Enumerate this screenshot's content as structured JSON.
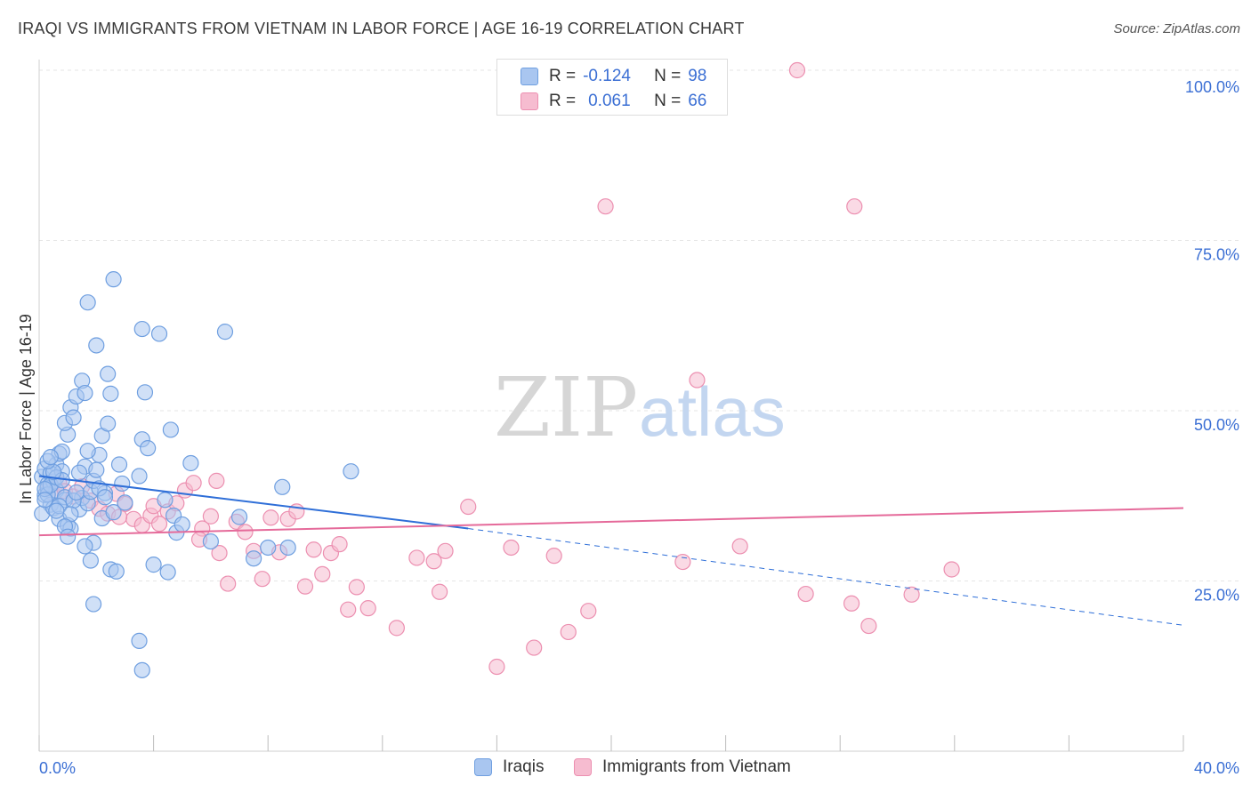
{
  "title": "IRAQI VS IMMIGRANTS FROM VIETNAM IN LABOR FORCE | AGE 16-19 CORRELATION CHART",
  "source": "Source: ZipAtlas.com",
  "watermark": {
    "zip": "ZIP",
    "atlas": "atlas"
  },
  "colors": {
    "iraqis_fill": "#a9c6f0",
    "iraqis_stroke": "#6f9fe0",
    "iraqis_line": "#2f6fd8",
    "vietnam_fill": "#f6bcd0",
    "vietnam_stroke": "#ec8fb0",
    "vietnam_line": "#e56a9a",
    "axis_text": "#3b6fd4",
    "grid": "#e6e6e6"
  },
  "stats": [
    {
      "r_label": "R =",
      "r_value": "-0.124",
      "n_label": "N =",
      "n_value": "98"
    },
    {
      "r_label": "R =",
      "r_value": "0.061",
      "n_label": "N =",
      "n_value": "66"
    }
  ],
  "chart_data": {
    "type": "scatter",
    "ylabel": "In Labor Force | Age 16-19",
    "xlim": [
      0,
      40
    ],
    "ylim": [
      0,
      100
    ],
    "x_tick_labels": [
      "0.0%",
      "40.0%"
    ],
    "y_tick_labels": [
      "25.0%",
      "50.0%",
      "75.0%",
      "100.0%"
    ],
    "y_ticks": [
      25,
      50,
      75,
      100
    ],
    "grid": true,
    "legend_position": "bottom",
    "series": [
      {
        "name": "Iraqis",
        "r": -0.124,
        "n": 98,
        "trend": {
          "x0": 0,
          "y0": 40.4,
          "x1": 15,
          "y1": 32.7,
          "dashed_to_x": 40,
          "dashed_to_y": 18.5
        },
        "points": [
          [
            0.1,
            40.3
          ],
          [
            0.2,
            41.5
          ],
          [
            0.3,
            39.2
          ],
          [
            0.2,
            37.6
          ],
          [
            0.4,
            36.2
          ],
          [
            0.1,
            34.9
          ],
          [
            0.3,
            38.7
          ],
          [
            0.5,
            39.6
          ],
          [
            0.6,
            42.1
          ],
          [
            0.4,
            40.8
          ],
          [
            0.7,
            43.7
          ],
          [
            0.8,
            41.1
          ],
          [
            0.6,
            38.3
          ],
          [
            0.9,
            36.9
          ],
          [
            0.5,
            35.7
          ],
          [
            0.7,
            34.1
          ],
          [
            1.0,
            46.5
          ],
          [
            0.9,
            48.2
          ],
          [
            1.1,
            50.5
          ],
          [
            1.2,
            49.0
          ],
          [
            1.3,
            52.1
          ],
          [
            0.8,
            44.0
          ],
          [
            1.0,
            33.2
          ],
          [
            1.1,
            32.7
          ],
          [
            1.4,
            35.5
          ],
          [
            1.5,
            37.2
          ],
          [
            1.6,
            41.8
          ],
          [
            1.7,
            36.4
          ],
          [
            1.8,
            38.1
          ],
          [
            1.9,
            39.7
          ],
          [
            2.0,
            41.3
          ],
          [
            2.1,
            43.5
          ],
          [
            2.2,
            46.3
          ],
          [
            1.5,
            54.4
          ],
          [
            1.6,
            52.6
          ],
          [
            2.0,
            59.6
          ],
          [
            2.4,
            55.4
          ],
          [
            2.5,
            52.5
          ],
          [
            1.7,
            65.9
          ],
          [
            2.6,
            69.3
          ],
          [
            2.8,
            42.1
          ],
          [
            2.9,
            39.3
          ],
          [
            3.0,
            36.5
          ],
          [
            2.3,
            37.9
          ],
          [
            2.2,
            34.2
          ],
          [
            2.5,
            26.7
          ],
          [
            2.7,
            26.4
          ],
          [
            1.9,
            30.6
          ],
          [
            1.8,
            28.0
          ],
          [
            1.6,
            30.1
          ],
          [
            1.9,
            21.6
          ],
          [
            3.5,
            40.4
          ],
          [
            3.6,
            45.8
          ],
          [
            3.7,
            52.7
          ],
          [
            3.8,
            44.5
          ],
          [
            3.6,
            62.0
          ],
          [
            4.2,
            61.3
          ],
          [
            4.6,
            47.2
          ],
          [
            5.3,
            42.3
          ],
          [
            4.0,
            27.4
          ],
          [
            4.5,
            26.3
          ],
          [
            4.4,
            36.9
          ],
          [
            4.7,
            34.6
          ],
          [
            4.8,
            32.1
          ],
          [
            5.0,
            33.3
          ],
          [
            6.0,
            30.8
          ],
          [
            6.5,
            61.6
          ],
          [
            7.0,
            34.4
          ],
          [
            7.5,
            28.3
          ],
          [
            8.0,
            29.9
          ],
          [
            8.7,
            29.9
          ],
          [
            8.5,
            38.8
          ],
          [
            10.9,
            41.1
          ],
          [
            3.5,
            16.2
          ],
          [
            3.6,
            11.9
          ],
          [
            0.3,
            37.7
          ],
          [
            0.4,
            39.1
          ],
          [
            0.2,
            38.5
          ],
          [
            0.9,
            37.3
          ],
          [
            1.2,
            36.8
          ],
          [
            1.3,
            38.0
          ],
          [
            0.6,
            40.2
          ],
          [
            0.8,
            39.8
          ],
          [
            1.4,
            40.9
          ],
          [
            2.1,
            38.6
          ],
          [
            2.3,
            37.3
          ],
          [
            2.6,
            35.1
          ],
          [
            0.5,
            41.0
          ],
          [
            0.7,
            36.0
          ],
          [
            1.1,
            34.8
          ],
          [
            0.3,
            42.6
          ],
          [
            0.4,
            43.2
          ],
          [
            1.7,
            44.1
          ],
          [
            2.4,
            48.1
          ],
          [
            0.9,
            33.0
          ],
          [
            1.0,
            31.5
          ],
          [
            0.6,
            35.3
          ],
          [
            0.2,
            36.9
          ]
        ]
      },
      {
        "name": "Immigrants from Vietnam",
        "r": 0.061,
        "n": 66,
        "trend": {
          "x0": 0,
          "y0": 31.7,
          "x1": 40,
          "y1": 35.7
        },
        "points": [
          [
            0.3,
            38.7
          ],
          [
            0.5,
            37.8
          ],
          [
            0.7,
            39.3
          ],
          [
            0.9,
            38.2
          ],
          [
            1.2,
            37.4
          ],
          [
            1.5,
            38.9
          ],
          [
            1.8,
            36.8
          ],
          [
            2.1,
            35.6
          ],
          [
            2.4,
            34.9
          ],
          [
            2.7,
            37.8
          ],
          [
            3.0,
            36.3
          ],
          [
            3.3,
            34.1
          ],
          [
            3.6,
            33.2
          ],
          [
            3.9,
            34.6
          ],
          [
            4.2,
            33.4
          ],
          [
            4.5,
            35.2
          ],
          [
            4.8,
            36.4
          ],
          [
            5.1,
            38.3
          ],
          [
            5.4,
            39.4
          ],
          [
            5.7,
            32.7
          ],
          [
            6.0,
            34.5
          ],
          [
            6.3,
            29.1
          ],
          [
            6.6,
            24.6
          ],
          [
            6.9,
            33.7
          ],
          [
            7.2,
            32.2
          ],
          [
            7.5,
            29.4
          ],
          [
            7.8,
            25.3
          ],
          [
            8.1,
            34.3
          ],
          [
            8.4,
            29.2
          ],
          [
            8.7,
            34.1
          ],
          [
            9.0,
            35.2
          ],
          [
            9.3,
            24.2
          ],
          [
            9.6,
            29.6
          ],
          [
            9.9,
            26.0
          ],
          [
            10.2,
            29.1
          ],
          [
            10.5,
            30.4
          ],
          [
            10.8,
            20.8
          ],
          [
            11.1,
            24.1
          ],
          [
            11.5,
            21.0
          ],
          [
            12.5,
            18.1
          ],
          [
            13.2,
            28.4
          ],
          [
            13.8,
            27.9
          ],
          [
            14.0,
            23.4
          ],
          [
            14.2,
            29.4
          ],
          [
            15.0,
            35.9
          ],
          [
            16.0,
            12.4
          ],
          [
            16.5,
            29.9
          ],
          [
            17.3,
            15.2
          ],
          [
            18.0,
            28.7
          ],
          [
            18.5,
            17.5
          ],
          [
            19.2,
            20.6
          ],
          [
            19.8,
            80.0
          ],
          [
            22.5,
            27.8
          ],
          [
            23.0,
            54.5
          ],
          [
            24.5,
            30.1
          ],
          [
            26.5,
            100.0
          ],
          [
            26.8,
            23.1
          ],
          [
            28.5,
            80.0
          ],
          [
            28.4,
            21.7
          ],
          [
            29.0,
            18.4
          ],
          [
            30.5,
            23.0
          ],
          [
            31.9,
            26.7
          ],
          [
            6.2,
            39.7
          ],
          [
            4.0,
            36.0
          ],
          [
            2.8,
            34.4
          ],
          [
            5.6,
            31.1
          ]
        ]
      }
    ]
  }
}
